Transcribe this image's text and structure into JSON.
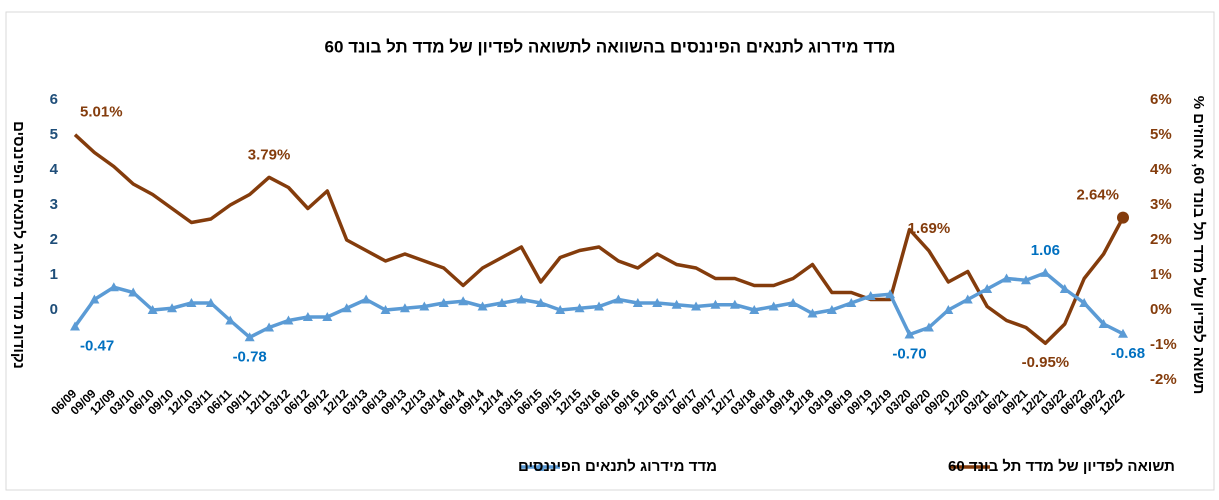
{
  "chart_data": {
    "type": "line",
    "title": "מדד מידרוג לתנאים הפיננסים בהשוואה לתשואה לפדיון של מדד תל בונד 60",
    "y_label": "נקודות מדד מידרוג לתנאים הפיננסים",
    "y2_label": "תשואה לפדיון של מדד תל בונד 60, אחוזים %",
    "categories": [
      "06/09",
      "09/09",
      "12/09",
      "03/10",
      "06/10",
      "09/10",
      "12/10",
      "03/11",
      "06/11",
      "09/11",
      "12/11",
      "03/12",
      "06/12",
      "09/12",
      "12/12",
      "03/13",
      "06/13",
      "09/13",
      "12/13",
      "03/14",
      "06/14",
      "09/14",
      "12/14",
      "03/15",
      "06/15",
      "09/15",
      "12/15",
      "03/16",
      "06/16",
      "09/16",
      "12/16",
      "03/17",
      "06/17",
      "09/17",
      "12/17",
      "03/18",
      "06/18",
      "09/18",
      "12/18",
      "03/19",
      "06/19",
      "09/19",
      "12/19",
      "03/20",
      "06/20",
      "09/20",
      "12/20",
      "03/21",
      "06/21",
      "09/21",
      "12/21",
      "03/22",
      "06/22",
      "09/22",
      "12/22"
    ],
    "ylim": [
      -2,
      6
    ],
    "yticks": [
      0,
      1,
      2,
      3,
      4,
      5,
      6
    ],
    "y2lim": [
      -2,
      6
    ],
    "y2ticks": [
      {
        "value": -2,
        "label": "-2%"
      },
      {
        "value": -1,
        "label": "-1%"
      },
      {
        "value": 0,
        "label": "0%"
      },
      {
        "value": 1,
        "label": "1%"
      },
      {
        "value": 2,
        "label": "2%"
      },
      {
        "value": 3,
        "label": "3%"
      },
      {
        "value": 4,
        "label": "4%"
      },
      {
        "value": 5,
        "label": "5%"
      },
      {
        "value": 6,
        "label": "6%"
      }
    ],
    "legend": "bottom",
    "series": [
      {
        "name": "תשואה לפדיון של מדד תל בונד 60",
        "color": "#843c0c",
        "axis": "y2",
        "values": [
          5.01,
          4.5,
          4.1,
          3.6,
          3.3,
          2.9,
          2.5,
          2.6,
          3.0,
          3.3,
          3.79,
          3.5,
          2.9,
          3.4,
          2.0,
          1.7,
          1.4,
          1.6,
          1.4,
          1.2,
          0.7,
          1.2,
          1.5,
          1.8,
          0.8,
          1.5,
          1.7,
          1.8,
          1.4,
          1.2,
          1.6,
          1.3,
          1.2,
          0.9,
          0.9,
          0.7,
          0.7,
          0.9,
          1.3,
          0.5,
          0.5,
          0.3,
          0.3,
          2.3,
          1.69,
          0.8,
          1.1,
          0.1,
          -0.3,
          -0.5,
          -0.95,
          -0.4,
          0.9,
          1.6,
          2.64
        ],
        "value_labels": [
          "5.01%",
          null,
          null,
          null,
          null,
          null,
          null,
          null,
          null,
          null,
          "3.79%",
          null,
          null,
          null,
          null,
          null,
          null,
          null,
          null,
          null,
          null,
          null,
          null,
          null,
          null,
          null,
          null,
          null,
          null,
          null,
          null,
          null,
          null,
          null,
          null,
          null,
          null,
          null,
          null,
          null,
          null,
          null,
          null,
          null,
          "1.69%",
          null,
          null,
          null,
          null,
          null,
          "-0.95%",
          null,
          null,
          null,
          "2.64%"
        ]
      },
      {
        "name": "מדד מידרוג לתנאים הפיננסים",
        "color": "#5b9bd5",
        "values": [
          -0.47,
          0.3,
          0.65,
          0.5,
          0.0,
          0.05,
          0.2,
          0.2,
          -0.3,
          -0.78,
          -0.5,
          -0.3,
          -0.2,
          -0.2,
          0.05,
          0.3,
          0.0,
          0.05,
          0.1,
          0.2,
          0.25,
          0.1,
          0.2,
          0.3,
          0.2,
          0.0,
          0.05,
          0.1,
          0.3,
          0.2,
          0.2,
          0.15,
          0.1,
          0.15,
          0.15,
          0.0,
          0.1,
          0.2,
          -0.1,
          0.0,
          0.2,
          0.4,
          0.45,
          -0.7,
          -0.5,
          0.0,
          0.3,
          0.6,
          0.9,
          0.85,
          1.06,
          0.6,
          0.2,
          -0.4,
          -0.68
        ],
        "value_labels": [
          "-0.47",
          null,
          null,
          null,
          null,
          null,
          null,
          null,
          null,
          "-0.78",
          null,
          null,
          null,
          null,
          null,
          null,
          null,
          null,
          null,
          null,
          null,
          null,
          null,
          null,
          null,
          null,
          null,
          null,
          null,
          null,
          null,
          null,
          null,
          null,
          null,
          null,
          null,
          null,
          null,
          null,
          null,
          null,
          null,
          "-0.70",
          null,
          null,
          null,
          null,
          null,
          null,
          "1.06",
          null,
          null,
          null,
          "-0.68"
        ]
      }
    ]
  }
}
